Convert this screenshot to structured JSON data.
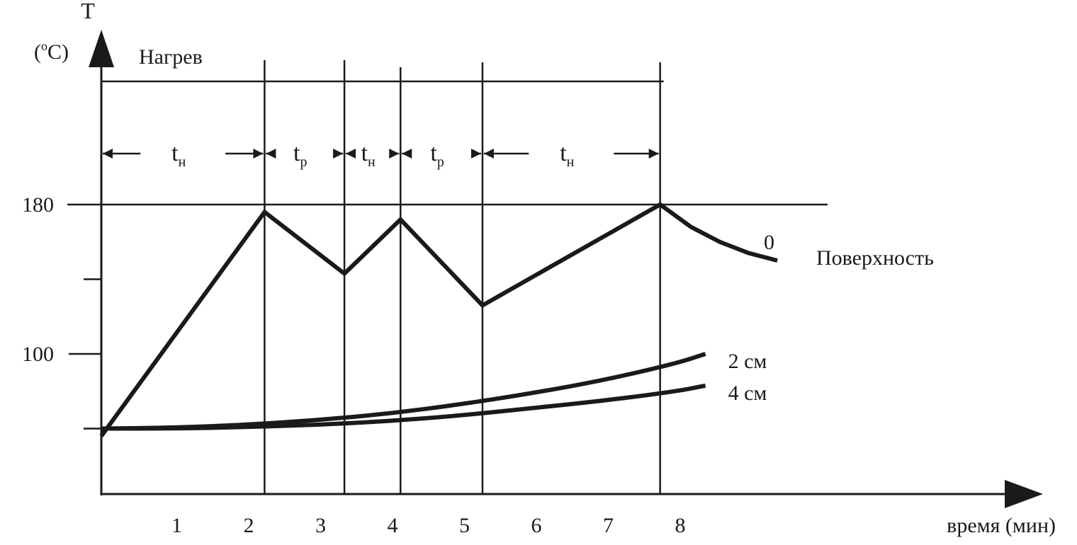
{
  "chart_data": {
    "type": "line",
    "title": "",
    "xlabel": "время (мин)",
    "ylabel_top": "T",
    "ylabel_unit_open": "(",
    "ylabel_unit_sup": "o",
    "ylabel_unit_close": "C)",
    "x_ticks": [
      "1",
      "2",
      "3",
      "4",
      "5",
      "6",
      "7",
      "8"
    ],
    "y_tick_labels": [
      {
        "value": 180,
        "label": "180"
      },
      {
        "value": 100,
        "label": "100"
      }
    ],
    "y_minor_ticks": [
      140,
      60
    ],
    "xlim": [
      0,
      13.2
    ],
    "ylim": [
      38,
      180
    ],
    "reference_line": {
      "y": 180
    },
    "heating_label": "Нагрев",
    "phase_boundaries": [
      2.27,
      3.38,
      4.16,
      5.3,
      7.77
    ],
    "phases": [
      {
        "base": "t",
        "sub": "н"
      },
      {
        "base": "t",
        "sub": "р"
      },
      {
        "base": "t",
        "sub": "н"
      },
      {
        "base": "t",
        "sub": "р"
      },
      {
        "base": "t",
        "sub": "н"
      }
    ],
    "series": [
      {
        "name": "Поверхность",
        "label": "0",
        "x": [
          0,
          2.27,
          3.38,
          4.16,
          5.3,
          7.77,
          8.2,
          8.6,
          9.0,
          9.4
        ],
        "y": [
          56,
          176,
          143,
          172,
          126,
          180,
          168,
          160,
          154,
          150
        ]
      },
      {
        "name": "2 см",
        "x": [
          0,
          1,
          2,
          3,
          4,
          5,
          6,
          7,
          8,
          8.4
        ],
        "y": [
          60,
          60.5,
          62,
          64.5,
          68,
          73,
          79,
          86,
          95,
          100
        ]
      },
      {
        "name": "4 см",
        "x": [
          0,
          1,
          2,
          3,
          4,
          5,
          6,
          7,
          8,
          8.4
        ],
        "y": [
          60,
          60,
          60.8,
          62,
          64,
          67,
          71,
          75,
          80,
          83
        ]
      }
    ]
  }
}
